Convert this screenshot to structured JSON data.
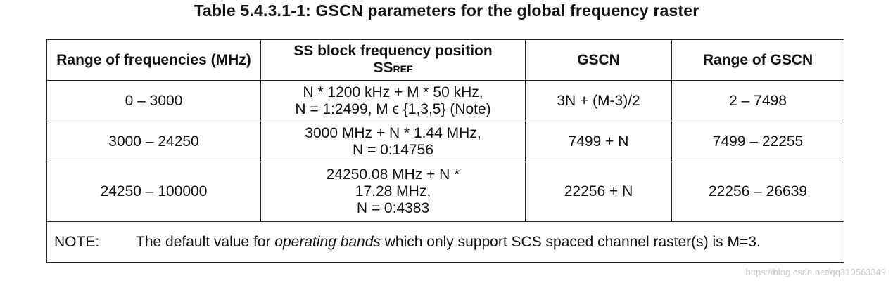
{
  "caption": "Table 5.4.3.1-1: GSCN parameters for the global frequency raster",
  "headers": {
    "col1": "Range of frequencies (MHz)",
    "col2_line1": "SS block frequency position",
    "col2_ss": "SS",
    "col2_ref": "REF",
    "col3": "GSCN",
    "col4": "Range of GSCN"
  },
  "rows": [
    {
      "range": "0 – 3000",
      "pos_line1": "N * 1200 kHz + M * 50 kHz,",
      "pos_line2": "N = 1:2499, M ϵ {1,3,5} (Note)",
      "gscn": "3N + (M-3)/2",
      "gscn_range": "2 – 7498"
    },
    {
      "range": "3000 – 24250",
      "pos_line1": "3000 MHz + N * 1.44 MHz,",
      "pos_line2": "N = 0:14756",
      "gscn": "7499 + N",
      "gscn_range": "7499 – 22255"
    },
    {
      "range": "24250 – 100000",
      "pos_line1": "24250.08 MHz + N *",
      "pos_line2": "17.28 MHz,",
      "pos_line3": "N = 0:4383",
      "gscn": "22256 + N",
      "gscn_range": "22256 – 26639"
    }
  ],
  "note": {
    "label": "NOTE:",
    "text_before": "The default value for ",
    "text_italic": "operating bands",
    "text_after": " which only support SCS spaced channel raster(s) is M=3."
  },
  "watermark": "https://blog.csdn.net/qq310563349"
}
